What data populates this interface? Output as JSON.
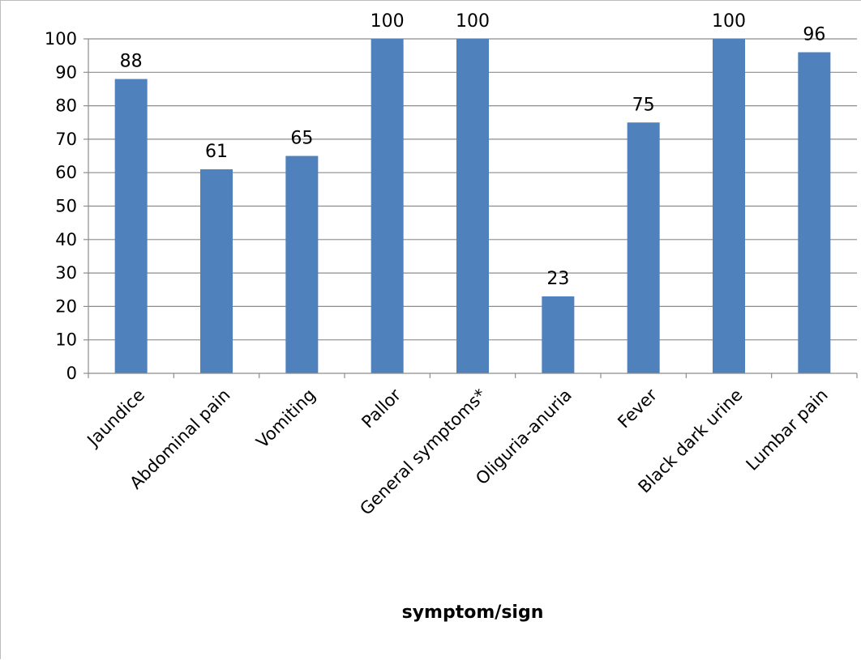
{
  "chart_data": {
    "type": "bar",
    "title": "",
    "xlabel": "symptom/sign",
    "ylabel": "",
    "ylim": [
      0,
      100
    ],
    "yticks": [
      0,
      10,
      20,
      30,
      40,
      50,
      60,
      70,
      80,
      90,
      100
    ],
    "grid": true,
    "legend": "none",
    "bar_color": "#4f81bd",
    "categories": [
      "Jaundice",
      "Abdominal pain",
      "Vomiting",
      "Pallor",
      "General symptoms*",
      "Oliguria-anuria",
      "Fever",
      "Black dark urine",
      "Lumbar pain"
    ],
    "values": [
      88,
      61,
      65,
      100,
      100,
      23,
      75,
      100,
      96
    ]
  }
}
